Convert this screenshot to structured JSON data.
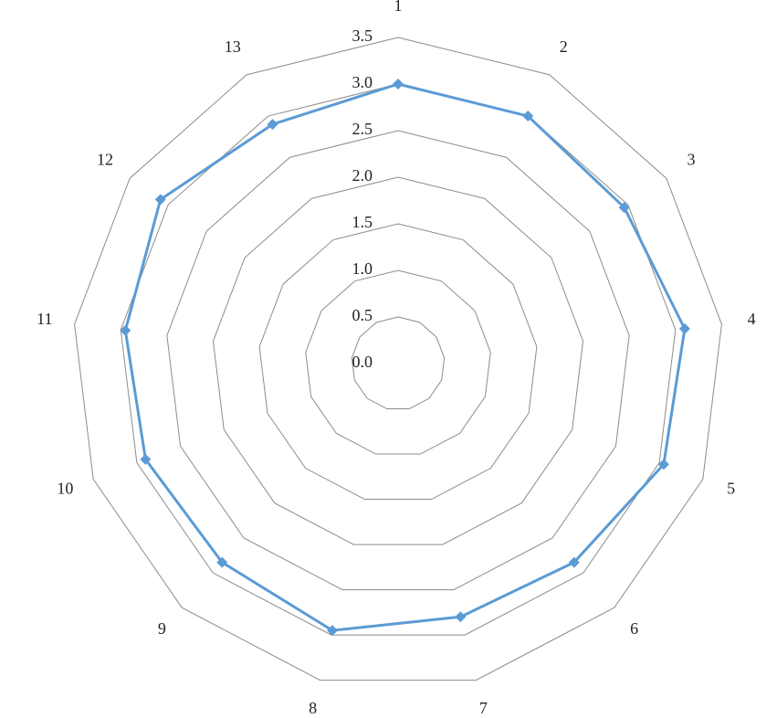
{
  "chart_data": {
    "type": "radar",
    "categories": [
      "1",
      "2",
      "3",
      "4",
      "5",
      "6",
      "7",
      "8",
      "9",
      "10",
      "11",
      "12",
      "13"
    ],
    "series": [
      {
        "color": "#5b9bd5",
        "values": [
          3.0,
          3.0,
          2.95,
          3.1,
          3.05,
          2.85,
          2.8,
          2.95,
          2.85,
          2.9,
          2.95,
          3.1,
          2.9
        ]
      }
    ],
    "ylim": [
      0,
      3.5
    ],
    "yticks": [
      {
        "value": 0,
        "label": "0.0"
      },
      0.5,
      {
        "value": 1,
        "label": "1.0"
      },
      1.5,
      {
        "value": 2,
        "label": "2.0"
      },
      2.5,
      {
        "value": 3,
        "label": "3.0"
      },
      3.5
    ],
    "grid": true
  }
}
